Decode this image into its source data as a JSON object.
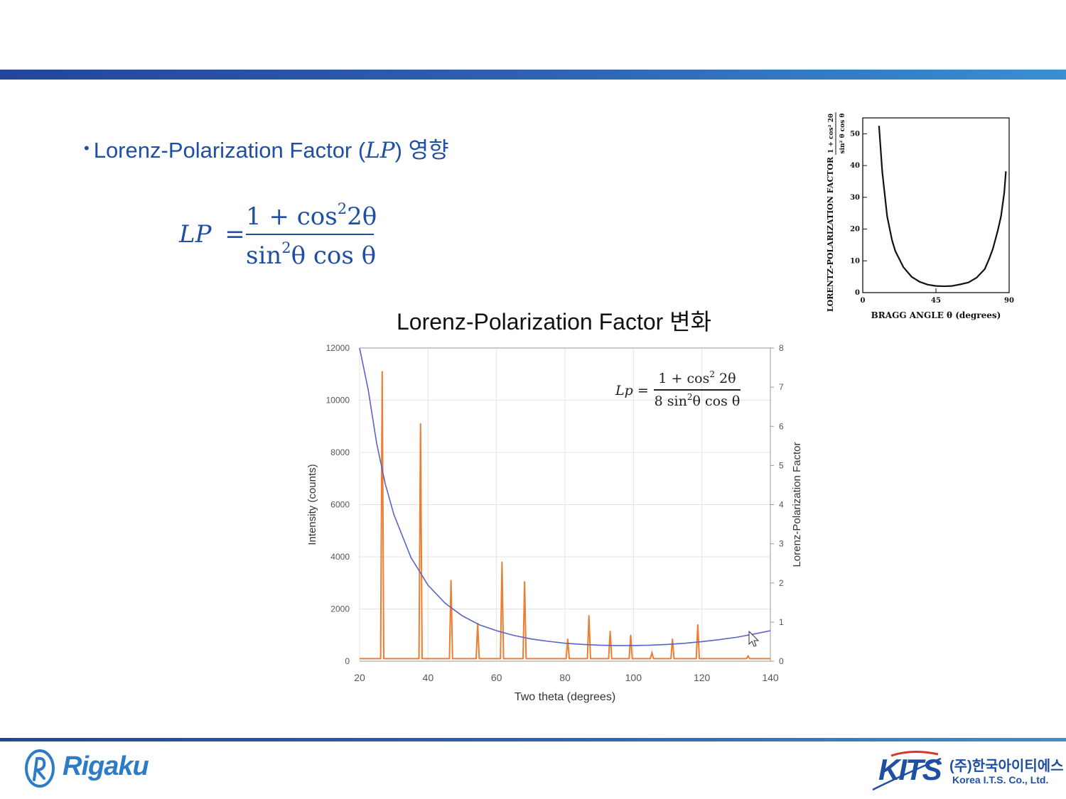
{
  "slide": {
    "bullet_text": "Lorenz-Polarization Factor (",
    "bullet_math": "LP",
    "bullet_end": ") 영향",
    "formula": {
      "lhs": "LP",
      "num_a": "1 + cos",
      "num_sup": "2",
      "num_b": "2θ",
      "den_a": "sin",
      "den_sup": "2",
      "den_b": "θ cos θ"
    },
    "chart_title": "Lorenz-Polarization Factor 변화",
    "brand_left": "Rigaku",
    "brand_right": "KITS",
    "brand_right_kr": "(주)한국아이티에스",
    "brand_right_en": "Korea I.T.S. Co., Ltd.",
    "colors": {
      "accent": "#1f4fa3",
      "band_start": "#22469a",
      "band_end": "#3a8fd0",
      "peaks": "#ed7d31",
      "lp_curve": "#5a63c8"
    }
  },
  "chart_data": [
    {
      "type": "line",
      "xlabel": "Two theta (degrees)",
      "ylabel": "Intensity (counts)",
      "y2label": "Lorenz-Polarization Factor",
      "xlim": [
        20,
        140
      ],
      "ylim": [
        0,
        12000
      ],
      "y2lim": [
        0,
        8
      ],
      "xticks": [
        20,
        40,
        60,
        80,
        100,
        120,
        140
      ],
      "yticks": [
        0,
        2000,
        4000,
        6000,
        8000,
        10000,
        12000
      ],
      "y2ticks": [
        0,
        1,
        2,
        3,
        4,
        5,
        6,
        7,
        8
      ],
      "grid": true,
      "formula": {
        "lhs": "Lp =",
        "num_a": "1 + cos",
        "num_sup": "2",
        "num_b": " 2θ",
        "den_a": "8 sin",
        "den_sup": "2",
        "den_b": "θ cos θ"
      },
      "series": [
        {
          "axis": "left",
          "baseline": 100,
          "peaks_x": [
            26.6,
            37.8,
            46.7,
            54.5,
            61.6,
            68.2,
            80.8,
            87.0,
            93.2,
            99.2,
            105.4,
            111.4,
            118.8,
            133.5
          ],
          "peaks_y": [
            11100,
            9100,
            3100,
            1450,
            3800,
            3050,
            850,
            1750,
            1150,
            1000,
            320,
            850,
            1400,
            200
          ]
        },
        {
          "axis": "right",
          "x": [
            20,
            22.5,
            25,
            27.5,
            30,
            35,
            40,
            45,
            50,
            55,
            60,
            65,
            70,
            75,
            80,
            85,
            90,
            95,
            100,
            105,
            110,
            115,
            120,
            125,
            130,
            135,
            140
          ],
          "y": [
            8.0,
            6.94,
            5.56,
            4.53,
            3.75,
            2.65,
            1.94,
            1.48,
            1.16,
            0.93,
            0.78,
            0.66,
            0.57,
            0.51,
            0.46,
            0.43,
            0.41,
            0.4,
            0.4,
            0.41,
            0.43,
            0.46,
            0.5,
            0.55,
            0.61,
            0.69,
            0.78
          ]
        }
      ]
    },
    {
      "type": "line",
      "xlabel": "BRAGG ANGLE θ (degrees)",
      "ylabel": "LORENTZ-POLARIZATION FACTOR",
      "ylabel_formula_num": "1 + cos² 2θ",
      "ylabel_formula_den": "sin² θ cos θ",
      "xlim": [
        0,
        90
      ],
      "ylim": [
        0,
        55
      ],
      "xticks": [
        0,
        45,
        90
      ],
      "yticks": [
        0,
        10,
        20,
        30,
        40,
        50
      ],
      "series": [
        {
          "x": [
            10,
            12,
            15,
            18,
            20,
            25,
            30,
            35,
            40,
            45,
            50,
            55,
            60,
            65,
            70,
            75,
            78,
            80,
            83,
            85,
            87,
            88
          ],
          "y": [
            52.5,
            38,
            24,
            16.5,
            13.1,
            8.0,
            5.0,
            3.4,
            2.5,
            2.1,
            2.0,
            2.1,
            2.6,
            3.2,
            4.7,
            7.4,
            11.0,
            13.8,
            19.5,
            24,
            31.5,
            38.2
          ]
        }
      ]
    }
  ]
}
